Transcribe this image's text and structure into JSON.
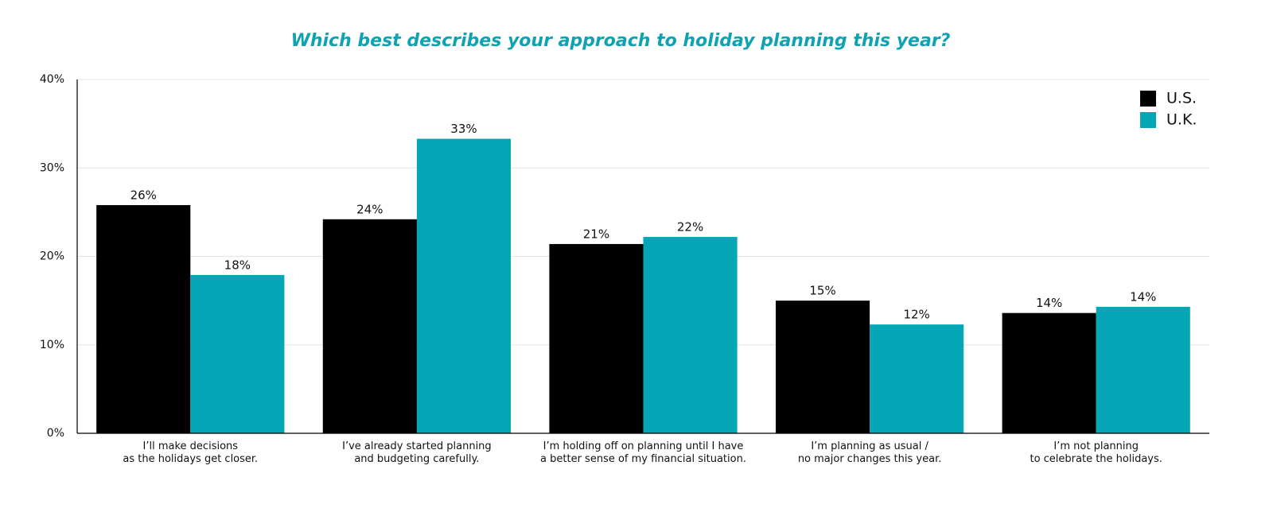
{
  "chart_data": {
    "type": "bar",
    "title": "Which best describes your approach to holiday planning this year?",
    "categories": [
      [
        "I’ll make decisions",
        "as the holidays get closer."
      ],
      [
        "I’ve already started planning",
        "and budgeting carefully."
      ],
      [
        "I’m holding off on planning until I have",
        "a better sense of my financial situation."
      ],
      [
        "I’m planning as usual /",
        "no major changes this year."
      ],
      [
        "I’m not planning",
        "to celebrate the holidays."
      ]
    ],
    "series": [
      {
        "name": "U.S.",
        "color": "#000000",
        "values": [
          25.8,
          24.2,
          21.4,
          15.0,
          13.6
        ],
        "value_labels": [
          "26%",
          "24%",
          "21%",
          "15%",
          "14%"
        ]
      },
      {
        "name": "U.K.",
        "color": "#05a6b5",
        "values": [
          17.9,
          33.3,
          22.2,
          12.3,
          14.3
        ],
        "value_labels": [
          "18%",
          "33%",
          "22%",
          "12%",
          "14%"
        ]
      }
    ],
    "ylim": [
      0,
      40
    ],
    "yticks": [
      {
        "value": 0,
        "label": "0%"
      },
      {
        "value": 10,
        "label": "10%"
      },
      {
        "value": 20,
        "label": "20%"
      },
      {
        "value": 30,
        "label": "30%"
      },
      {
        "value": 40,
        "label": "40%"
      }
    ],
    "grid": true,
    "legend": "top-right",
    "title_color": "#0fa3b1"
  }
}
